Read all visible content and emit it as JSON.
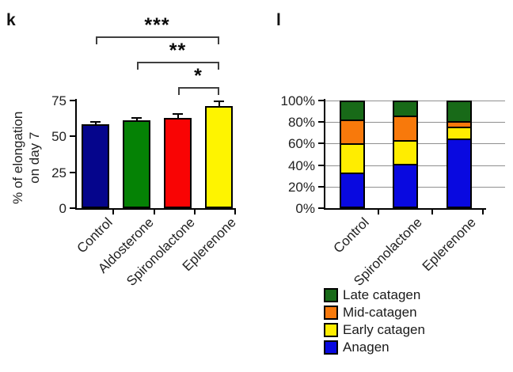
{
  "panels": {
    "k": "k",
    "l": "l"
  },
  "chart_data": [
    {
      "type": "bar",
      "panel": "k",
      "title": "",
      "ylabel": "% of elongation on day 7",
      "ylabel_lines": [
        "% of elongation",
        "on day 7"
      ],
      "categories": [
        "Control",
        "Aldosterone",
        "Spironolactone",
        "Eplerenone"
      ],
      "values": [
        58.5,
        61,
        63,
        71
      ],
      "errors": [
        1.5,
        2,
        2.5,
        3.5
      ],
      "bar_colors": [
        "#05058C",
        "#058205",
        "#F90404",
        "#FEF400"
      ],
      "ylim": [
        0,
        75
      ],
      "yticks": [
        0,
        25,
        50,
        75
      ],
      "ytick_labels": [
        "75",
        "50",
        "25",
        "0"
      ],
      "grid": false,
      "significance": [
        {
          "label": "***",
          "from": "Control",
          "to": "Eplerenone"
        },
        {
          "label": "**",
          "from": "Aldosterone",
          "to": "Eplerenone"
        },
        {
          "label": "*",
          "from": "Spironolactone",
          "to": "Eplerenone"
        }
      ]
    },
    {
      "type": "bar",
      "stacked": true,
      "panel": "l",
      "title": "",
      "categories": [
        "Control",
        "Spironolactone",
        "Eplerenone"
      ],
      "series": [
        {
          "name": "Anagen",
          "color": "#0909E0",
          "values": [
            33,
            41,
            65
          ]
        },
        {
          "name": "Early catagen",
          "color": "#FFED00",
          "values": [
            27,
            22,
            11
          ]
        },
        {
          "name": "Mid-catagen",
          "color": "#F8790B",
          "values": [
            22,
            23,
            5
          ]
        },
        {
          "name": "Late catagen",
          "color": "#186A18",
          "values": [
            18,
            14,
            19
          ]
        }
      ],
      "ylim": [
        0,
        100
      ],
      "yticks": [
        0,
        20,
        40,
        60,
        80,
        100
      ],
      "ytick_labels": [
        "100%",
        "80%",
        "60%",
        "40%",
        "20%",
        "0%"
      ],
      "grid": true,
      "legend_position": "bottom",
      "legend": [
        {
          "label": "Late catagen",
          "color": "#186A18"
        },
        {
          "label": "Mid-catagen",
          "color": "#F8790B"
        },
        {
          "label": "Early catagen",
          "color": "#FFED00"
        },
        {
          "label": "Anagen",
          "color": "#0909E0"
        }
      ]
    }
  ]
}
